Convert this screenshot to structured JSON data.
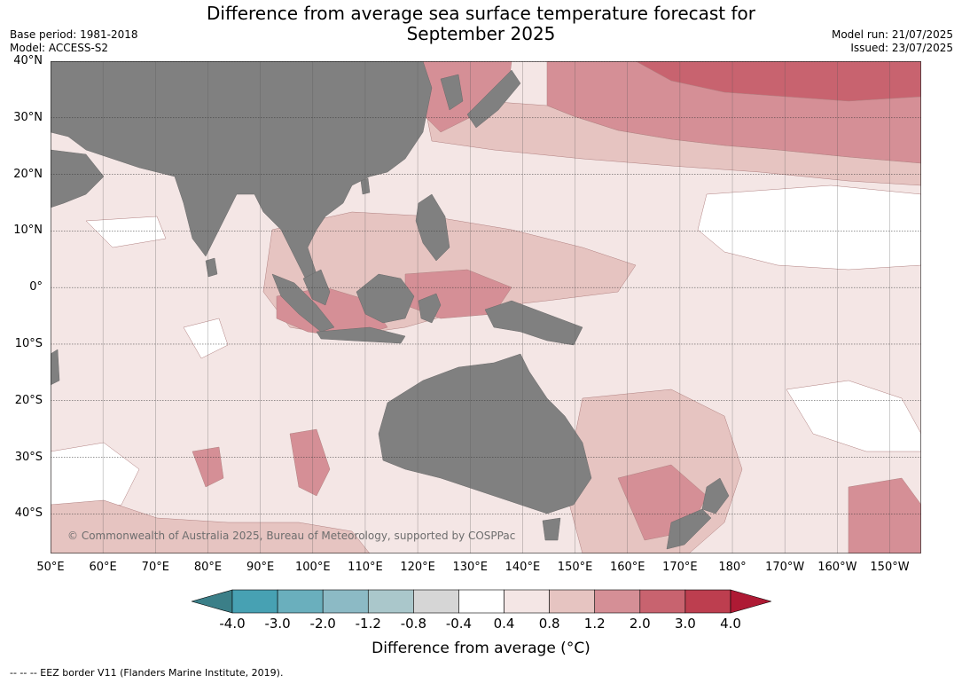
{
  "title_line1": "Difference from average sea surface temperature forecast for",
  "title_line2": "September 2025",
  "base_period": "Base period: 1981-2018",
  "model": "Model: ACCESS-S2",
  "model_run": "Model run: 21/07/2025",
  "issued": "Issued: 23/07/2025",
  "copyright": "© Commonwealth of Australia 2025, Bureau of Meteorology, supported by COSPPac",
  "footnote": "-- -- -- EEZ border V11 (Flanders Marine Institute, 2019).",
  "map": {
    "lon_range": [
      50,
      216
    ],
    "lat_range": [
      -47,
      40
    ],
    "lat_labels": [
      {
        "lat": 40,
        "label": "40°N"
      },
      {
        "lat": 30,
        "label": "30°N"
      },
      {
        "lat": 20,
        "label": "20°N"
      },
      {
        "lat": 10,
        "label": "10°N"
      },
      {
        "lat": 0,
        "label": "0°"
      },
      {
        "lat": -10,
        "label": "10°S"
      },
      {
        "lat": -20,
        "label": "20°S"
      },
      {
        "lat": -30,
        "label": "30°S"
      },
      {
        "lat": -40,
        "label": "40°S"
      }
    ],
    "lon_labels": [
      {
        "lon": 50,
        "label": "50°E"
      },
      {
        "lon": 60,
        "label": "60°E"
      },
      {
        "lon": 70,
        "label": "70°E"
      },
      {
        "lon": 80,
        "label": "80°E"
      },
      {
        "lon": 90,
        "label": "90°E"
      },
      {
        "lon": 100,
        "label": "100°E"
      },
      {
        "lon": 110,
        "label": "110°E"
      },
      {
        "lon": 120,
        "label": "120°E"
      },
      {
        "lon": 130,
        "label": "130°E"
      },
      {
        "lon": 140,
        "label": "140°E"
      },
      {
        "lon": 150,
        "label": "150°E"
      },
      {
        "lon": 160,
        "label": "160°E"
      },
      {
        "lon": 170,
        "label": "170°E"
      },
      {
        "lon": 180,
        "label": "180°"
      },
      {
        "lon": 190,
        "label": "170°W"
      },
      {
        "lon": 200,
        "label": "160°W"
      },
      {
        "lon": 210,
        "label": "150°W"
      }
    ],
    "land_color": "#808080"
  },
  "colorbar": {
    "label": "Difference from average (",
    "label_unit": "°C)",
    "ticks": [
      "-4.0",
      "-3.0",
      "-2.0",
      "-1.2",
      "-0.8",
      "-0.4",
      "0.4",
      "0.8",
      "1.2",
      "2.0",
      "3.0",
      "4.0"
    ],
    "under_color": "#3b7f88",
    "over_color": "#ae1a34",
    "colors": [
      "#47a1b3",
      "#6aafbd",
      "#8cbac5",
      "#aac7cb",
      "#d6d6d6",
      "#ffffff",
      "#f4e6e5",
      "#e6c4c1",
      "#d58f96",
      "#c8636f",
      "#bd3e4f"
    ]
  }
}
